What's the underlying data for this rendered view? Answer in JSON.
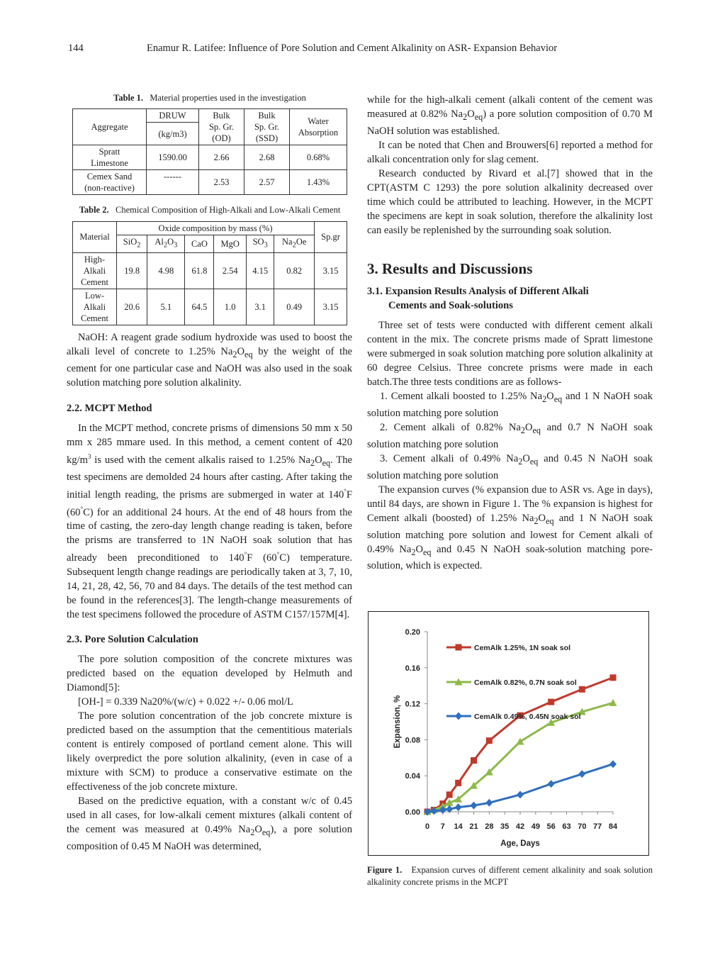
{
  "header": {
    "page_number": "144",
    "running_title": "Enamur R. Latifee:   Influence of Pore Solution and Cement Alkalinity on ASR- Expansion Behavior"
  },
  "table1": {
    "caption_label": "Table 1.",
    "caption_text": "Material properties used in the investigation",
    "h_aggregate": "Aggregate",
    "h_druw": "DRUW",
    "h_druw_unit": "(kg/m3)",
    "h_bulk_od_1": "Bulk",
    "h_bulk_od_2": "Sp. Gr.",
    "h_bulk_od_3": "(OD)",
    "h_bulk_ssd_1": "Bulk",
    "h_bulk_ssd_2": "Sp. Gr.",
    "h_bulk_ssd_3": "(SSD)",
    "h_water_1": "Water",
    "h_water_2": "Absorption",
    "r1_name_1": "Spratt",
    "r1_name_2": "Limestone",
    "r1_druw": "1590.00",
    "r1_od": "2.66",
    "r1_ssd": "2.68",
    "r1_abs": "0.68%",
    "r2_name_1": "Cemex Sand",
    "r2_name_2": "(non-reactive)",
    "r2_druw": "------",
    "r2_od": "2.53",
    "r2_ssd": "2.57",
    "r2_abs": "1.43%"
  },
  "table2": {
    "caption_label": "Table 2.",
    "caption_text": "Chemical Composition of High-Alkali and Low-Alkali Cement",
    "h_material": "Material",
    "h_oxide": "Oxide composition by mass (%)",
    "h_spgr": "Sp.gr",
    "h_sio2": "SiO",
    "h_al2o3_a": "Al",
    "h_al2o3_b": "O",
    "h_cao": "CaO",
    "h_mgo": "MgO",
    "h_so3": "SO",
    "h_na2oe_a": "Na",
    "h_na2oe_b": "Oe",
    "sub2": "2",
    "sub3": "3",
    "r1_name_1": "High-",
    "r1_name_2": "Alkali",
    "r1_name_3": "Cement",
    "r1": [
      "19.8",
      "4.98",
      "61.8",
      "2.54",
      "4.15",
      "0.82",
      "3.15"
    ],
    "r2_name_1": "Low-",
    "r2_name_2": "Alkali",
    "r2_name_3": "Cement",
    "r2": [
      "20.6",
      "5.1",
      "64.5",
      "1.0",
      "3.1",
      "0.49",
      "3.15"
    ]
  },
  "left": {
    "naoh_p1": "NaOH: A reagent grade sodium hydroxide was used to boost the alkali level of concrete to 1.25% Na",
    "naoh_p2": "O",
    "naoh_p3": " by the weight of the cement for one particular case and NaOH was also used in the soak solution matching pore solution alkalinity.",
    "sec22": "2.2. MCPT Method",
    "mcpt_a": "In the MCPT method, concrete prisms of dimensions 50 mm x 50 mm x 285 mmare used. In this method, a cement content of 420 kg/m",
    "mcpt_sup3": "3",
    "mcpt_b": " is used with the cement alkalis raised to 1.25% Na",
    "mcpt_c": "O",
    "mcpt_d": ". The test specimens are demolded 24 hours after casting. After taking the initial length reading, the prisms are submerged in water at 140",
    "mcpt_deg": "°",
    "mcpt_e": "F (60",
    "mcpt_f": "C) for an additional 24 hours. At the end of 48 hours from the time of casting, the zero-day length change reading is taken, before the prisms are transferred to 1N NaOH soak solution that has already been preconditioned to 140",
    "mcpt_g": "F (60",
    "mcpt_h": "C) temperature. Subsequent length change readings are periodically taken at 3, 7, 10, 14, 21, 28, 42, 56, 70 and 84 days. The details of the test method can be found in the references[3]. The length-change measurements of the test specimens followed the procedure of ASTM C157/157M[4].",
    "sec23": "2.3. Pore Solution Calculation",
    "pore_p1": "The pore solution composition of the concrete mixtures was predicted based on the equation developed by Helmuth and Diamond[5]:",
    "equation": "[OH-] = 0.339 Na20%/(w/c) + 0.022 +/-   0.06 mol/L",
    "pore_p2": "The pore solution concentration of the job concrete mixture is predicted based on the assumption that the cementitious materials content is entirely composed of portland cement alone. This will likely overpredict the pore solution alkalinity, (even in case of a mixture with SCM) to produce a conservative estimate on the effectiveness of the job concrete mixture.",
    "pore_p3a": "Based on the predictive equation, with a constant w/c of 0.45 used in all cases, for low-alkali cement mixtures (alkali content of the cement was measured at 0.49% Na",
    "pore_p3b": "O",
    "pore_p3c": "), a pore solution composition of 0.45 M NaOH was determined,",
    "sub_2": "2",
    "sub_eq": "eq"
  },
  "right": {
    "cont_a": "while for the high-alkali cement (alkali content of the cement was measured at 0.82% Na",
    "cont_b": "O",
    "cont_c": ") a pore solution composition of 0.70 M NaOH solution was established.",
    "chen": "It can be noted that Chen and Brouwers[6] reported a method for alkali concentration only for slag cement.",
    "rivard": "Research conducted by Rivard et al.[7] showed that in the CPT(ASTM C 1293) the pore solution alkalinity decreased over time which could be attributed to leaching. However, in the MCPT the specimens are kept in soak solution, therefore the alkalinity lost can easily be replenished by the surrounding soak solution.",
    "sec3": "3. Results and Discussions",
    "sec31_a": "3.1. Expansion Results Analysis of Different Alkali",
    "sec31_b": "Cements and Soak-solutions",
    "three_sets": "Three set of tests were conducted with different cement alkali content in the mix. The concrete prisms made of Spratt limestone were submerged in soak solution matching pore solution alkalinity at 60 degree Celsius. Three concrete prisms were made in each batch.The three tests conditions are as follows-",
    "item1_a": "1. Cement alkali boosted to 1.25% Na",
    "item1_b": "O",
    "item1_c": " and 1 N NaOH soak solution matching pore solution",
    "item2_a": "2. Cement alkali of 0.82% Na",
    "item2_b": "O",
    "item2_c": " and 0.7 N NaOH soak solution matching pore solution",
    "item3_a": "3. Cement alkali of 0.49% Na",
    "item3_b": "O",
    "item3_c": " and 0.45 N NaOH soak solution matching pore solution",
    "curves_a": "The expansion curves (% expansion due to ASR vs. Age in days), until 84 days, are shown in Figure 1. The % expansion is highest for Cement alkali (boosted) of 1.25% Na",
    "curves_b": "O",
    "curves_c": " and 1 N NaOH soak solution matching pore solution and lowest for Cement alkali of 0.49% Na",
    "curves_d": "O",
    "curves_e": " and 0.45 N NaOH soak-solution matching pore-solution, which is expected.",
    "fig_label": "Figure 1.",
    "fig_text": "Expansion curves of different cement alkalinity and soak solution alkalinity concrete prisms in the MCPT"
  },
  "chart_data": {
    "type": "line",
    "xlabel": "Age, Days",
    "ylabel": "Expansion, %",
    "xticks": [
      "0",
      "7",
      "14",
      "21",
      "28",
      "35",
      "42",
      "49",
      "56",
      "63",
      "70",
      "77",
      "84"
    ],
    "xlim": [
      0,
      84
    ],
    "ylim": [
      0,
      0.2
    ],
    "yticks": [
      "0.00",
      "0.04",
      "0.08",
      "0.12",
      "0.16",
      "0.20"
    ],
    "grid": false,
    "legend_position": "top-left, inside",
    "series": [
      {
        "name": "CemAlk 1.25%, 1N soak sol",
        "color": "#c0392b",
        "marker": "square",
        "x": [
          0,
          3,
          7,
          10,
          14,
          21,
          28,
          42,
          56,
          70,
          84
        ],
        "y": [
          0.0,
          0.002,
          0.009,
          0.019,
          0.032,
          0.057,
          0.079,
          0.107,
          0.122,
          0.136,
          0.149
        ]
      },
      {
        "name": "CemAlk 0.82%, 0.7N soak sol",
        "color": "#8db94a",
        "marker": "triangle",
        "x": [
          0,
          3,
          7,
          10,
          14,
          21,
          28,
          42,
          56,
          70,
          84
        ],
        "y": [
          0.0,
          0.002,
          0.006,
          0.01,
          0.014,
          0.029,
          0.044,
          0.078,
          0.099,
          0.111,
          0.121
        ]
      },
      {
        "name": "CemAlk 0.49%, 0.45N soak sol",
        "color": "#2f6fbd",
        "marker": "diamond",
        "x": [
          0,
          3,
          7,
          10,
          14,
          21,
          28,
          42,
          56,
          70,
          84
        ],
        "y": [
          0.0,
          0.001,
          0.002,
          0.003,
          0.005,
          0.007,
          0.01,
          0.019,
          0.031,
          0.042,
          0.053
        ]
      }
    ]
  }
}
